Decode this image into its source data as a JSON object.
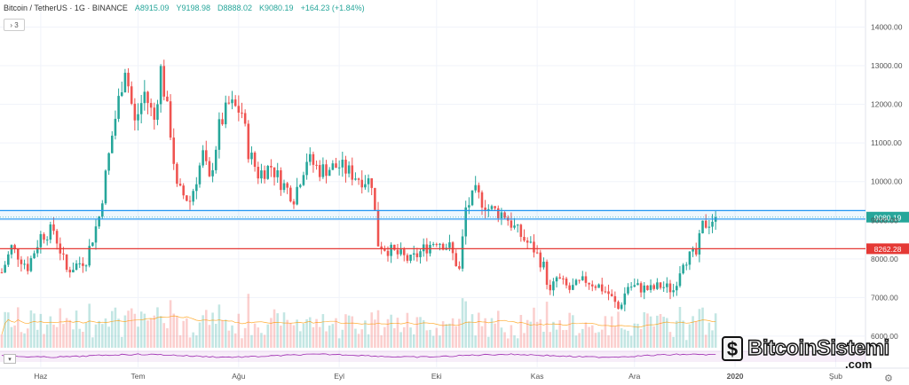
{
  "header": {
    "symbol": "Bitcoin / TetherUS · 1G · BINANCE",
    "open": "A8915.09",
    "high": "Y9198.98",
    "low": "D8888.02",
    "close": "K9080.19",
    "change": "+164.23 (+1.84%)",
    "indicator_toggle": "3"
  },
  "watermark": {
    "name": "BitcoinSistemi",
    "suffix": ".com"
  },
  "chart_data": {
    "type": "candlestick",
    "symbol": "BTCUSDT",
    "interval": "1D",
    "ylim": [
      5700,
      14700
    ],
    "y_ticks": [
      "14000.00",
      "13000.00",
      "12000.00",
      "11000.00",
      "10000.00",
      "9000.00",
      "8000.00",
      "7000.00",
      "6000.00"
    ],
    "y_tick_values": [
      14000,
      13000,
      12000,
      11000,
      10000,
      9000,
      8000,
      7000,
      6000
    ],
    "x_ticks": [
      "Haz",
      "Tem",
      "Ağu",
      "Eyl",
      "Eki",
      "Kas",
      "Ara",
      "2020",
      "Şub"
    ],
    "x_tick_days": [
      12,
      42,
      73,
      104,
      134,
      165,
      195,
      226,
      257
    ],
    "total_days": 264,
    "up_color": "#26a69a",
    "down_color": "#ef5350",
    "horizontal_lines": [
      {
        "label": "9080.19",
        "value": 9080.19,
        "color": "#26a69a",
        "style": "last-price"
      },
      {
        "value": 9250,
        "color": "#2196f3",
        "style": "band"
      },
      {
        "value": 9030,
        "color": "#2196f3",
        "style": "band"
      },
      {
        "label": "8262.28",
        "value": 8262.28,
        "color": "#e53935",
        "style": "line"
      }
    ],
    "price_path": [
      [
        0,
        7650
      ],
      [
        3,
        8300
      ],
      [
        8,
        7800
      ],
      [
        12,
        8600
      ],
      [
        16,
        8750
      ],
      [
        20,
        7700
      ],
      [
        26,
        8000
      ],
      [
        30,
        9100
      ],
      [
        34,
        11200
      ],
      [
        38,
        13000
      ],
      [
        41,
        11500
      ],
      [
        44,
        12300
      ],
      [
        47,
        11600
      ],
      [
        49,
        12900
      ],
      [
        52,
        11300
      ],
      [
        54,
        9800
      ],
      [
        58,
        9500
      ],
      [
        62,
        10700
      ],
      [
        64,
        10000
      ],
      [
        67,
        11400
      ],
      [
        70,
        12000
      ],
      [
        74,
        11800
      ],
      [
        76,
        10800
      ],
      [
        79,
        10200
      ],
      [
        83,
        10400
      ],
      [
        86,
        10000
      ],
      [
        90,
        9600
      ],
      [
        94,
        10600
      ],
      [
        98,
        10300
      ],
      [
        104,
        10400
      ],
      [
        110,
        10100
      ],
      [
        114,
        10000
      ],
      [
        116,
        8400
      ],
      [
        120,
        8200
      ],
      [
        126,
        7950
      ],
      [
        130,
        8250
      ],
      [
        134,
        8500
      ],
      [
        138,
        8300
      ],
      [
        141,
        7700
      ],
      [
        143,
        9300
      ],
      [
        146,
        9700
      ],
      [
        150,
        9300
      ],
      [
        155,
        9150
      ],
      [
        158,
        8800
      ],
      [
        161,
        8500
      ],
      [
        164,
        8250
      ],
      [
        167,
        7800
      ],
      [
        169,
        7100
      ],
      [
        171,
        7500
      ],
      [
        175,
        7200
      ],
      [
        180,
        7450
      ],
      [
        184,
        7300
      ],
      [
        187,
        7100
      ],
      [
        190,
        6700
      ],
      [
        193,
        7300
      ],
      [
        197,
        7250
      ],
      [
        200,
        7200
      ],
      [
        203,
        7300
      ],
      [
        207,
        7200
      ],
      [
        210,
        8000
      ],
      [
        214,
        8100
      ],
      [
        216,
        8850
      ],
      [
        220,
        9080
      ]
    ],
    "last_price": 9080.19
  }
}
